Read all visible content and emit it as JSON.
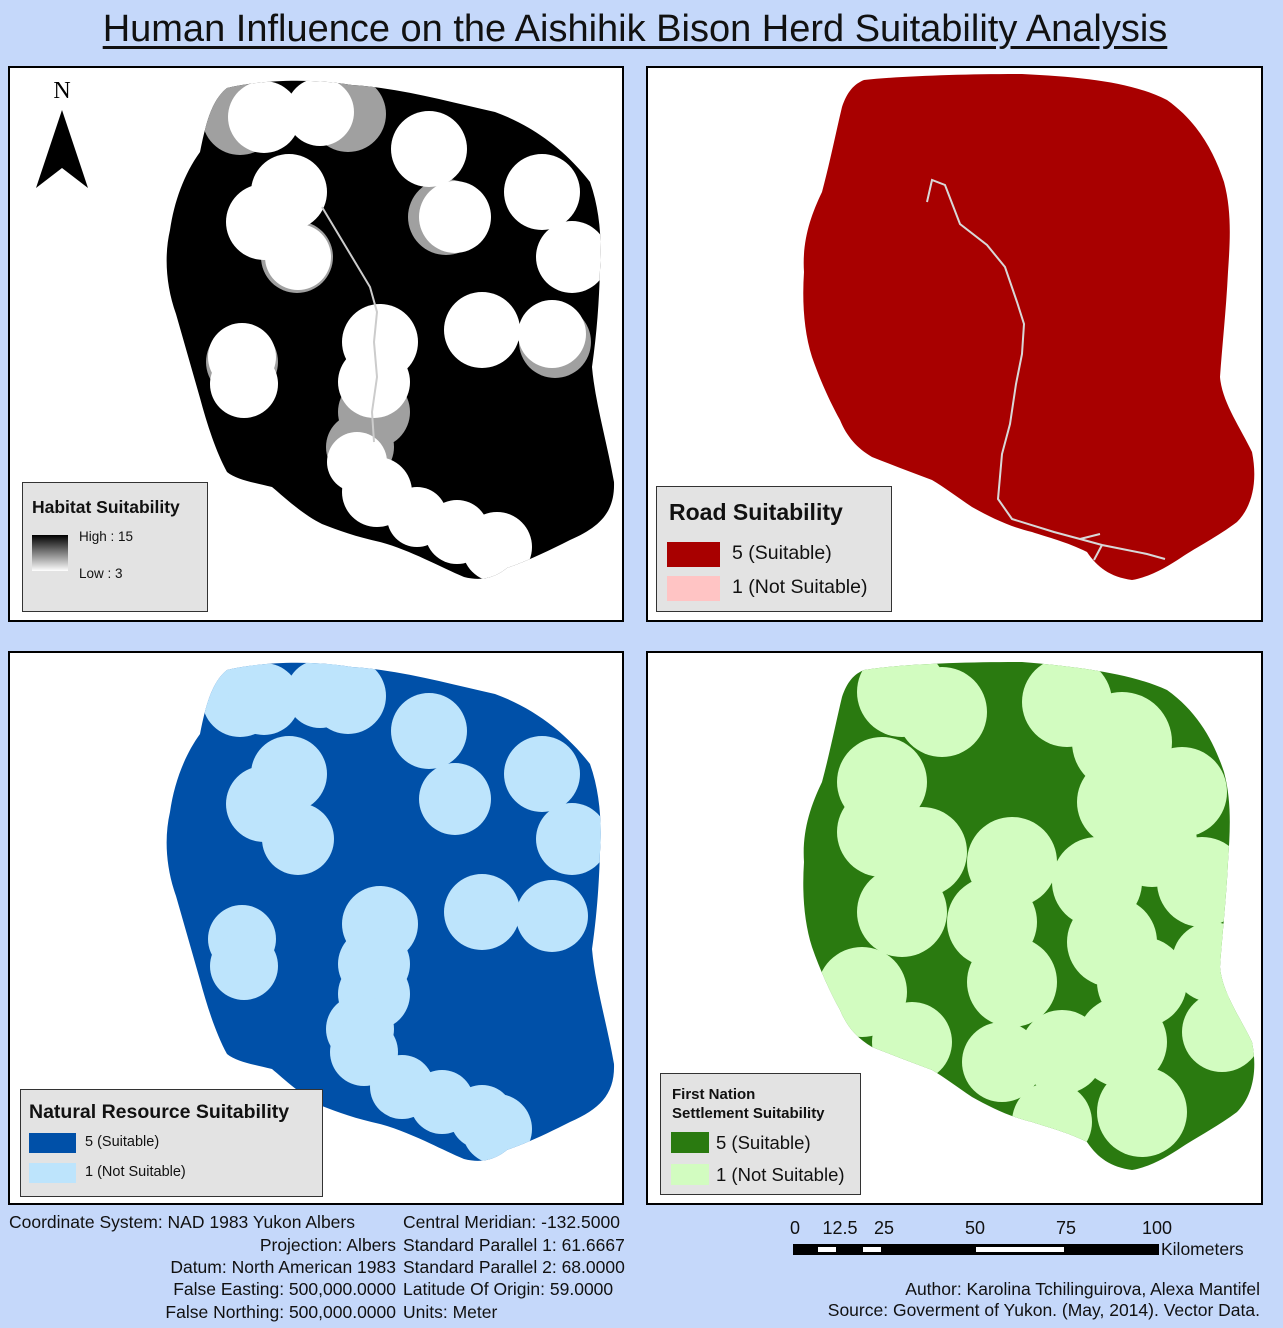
{
  "title": "Human Influence on the Aishihik Bison Herd Suitability Analysis",
  "colors": {
    "background": "#c5d8fa",
    "habitat_fill": "#000000",
    "habitat_mid": "#a0a0a0",
    "road_suitable": "#a80000",
    "road_not_suitable": "#ffc4c4",
    "road_line": "#d8d8d8",
    "nr_suitable": "#0050a8",
    "nr_not_suitable": "#bde4fc",
    "fn_suitable": "#2a7a10",
    "fn_not_suitable": "#d2fcc0"
  },
  "north_arrow": {
    "label": "N",
    "icon": "north-arrow-icon"
  },
  "habitat_legend": {
    "title": "Habitat Suitability",
    "high": "High : 15",
    "low": "Low : 3"
  },
  "road_legend": {
    "title": "Road Suitability",
    "items": [
      {
        "label": "5 (Suitable)"
      },
      {
        "label": "1 (Not Suitable)"
      }
    ]
  },
  "nr_legend": {
    "title": "Natural Resource Suitability",
    "items": [
      {
        "label": "5 (Suitable)"
      },
      {
        "label": "1 (Not Suitable)"
      }
    ]
  },
  "fn_legend": {
    "title_line1": "First Nation",
    "title_line2": "Settlement Suitability",
    "items": [
      {
        "label": "5 (Suitable)"
      },
      {
        "label": "1 (Not Suitable)"
      }
    ]
  },
  "coordinate_info": {
    "left": [
      "Coordinate System: NAD 1983 Yukon Albers",
      "Projection: Albers",
      "Datum: North American 1983",
      "False Easting: 500,000.0000",
      "False Northing: 500,000.0000"
    ],
    "right": [
      "Central Meridian: -132.5000",
      "Standard Parallel 1: 61.6667",
      "Standard Parallel 2: 68.0000",
      "Latitude Of Origin: 59.0000",
      "Units: Meter"
    ]
  },
  "scale_bar": {
    "ticks": [
      "0",
      "12.5",
      "25",
      "50",
      "75",
      "100"
    ],
    "unit": "Kilometers"
  },
  "credits": {
    "author": "Author: Karolina Tchilinguirova, Alexa Mantifel",
    "source": "Source: Goverment of Yukon. (May, 2014). Vector Data."
  }
}
